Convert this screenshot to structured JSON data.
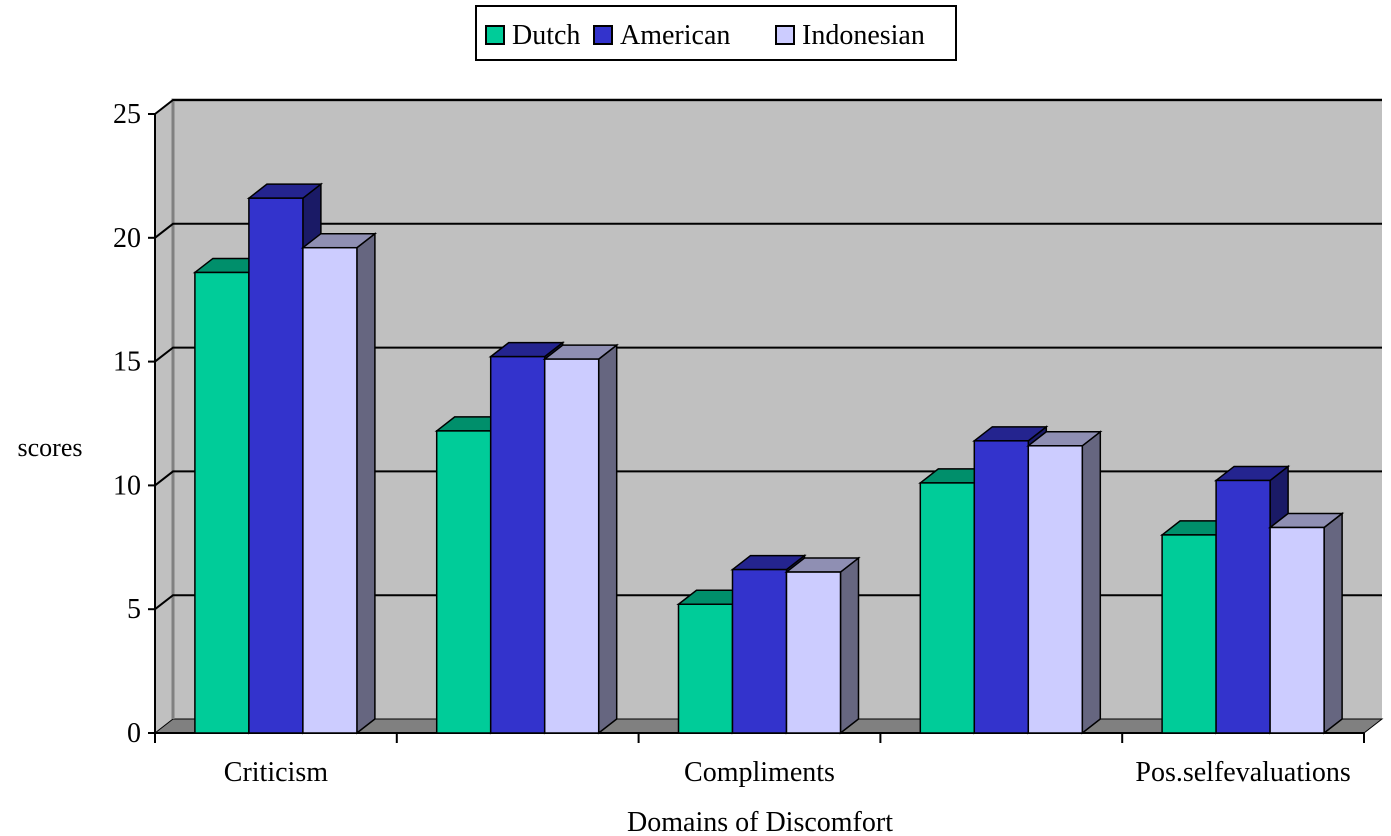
{
  "chart_data": {
    "type": "bar",
    "style": "3d-clustered-column",
    "title": "",
    "xlabel": "Domains of Discomfort",
    "ylabel": "scores",
    "ylim": [
      0,
      25
    ],
    "yticks": [
      "0",
      "5",
      "10",
      "15",
      "20",
      "25"
    ],
    "grid": true,
    "legend_position": "top",
    "categories": [
      "Criticism",
      "",
      "Compliments",
      "",
      "Pos.selfevaluations"
    ],
    "series": [
      {
        "name": "Dutch",
        "color": "#00CC99",
        "values": [
          18.6,
          12.2,
          5.2,
          10.1,
          8.0
        ]
      },
      {
        "name": "American",
        "color": "#3333CC",
        "values": [
          21.6,
          15.2,
          6.6,
          11.8,
          10.2
        ]
      },
      {
        "name": "Indonesian",
        "color": "#CCCCFF",
        "values": [
          19.6,
          15.1,
          6.5,
          11.6,
          8.3
        ]
      }
    ],
    "plot_background": "#C0C0C0"
  }
}
